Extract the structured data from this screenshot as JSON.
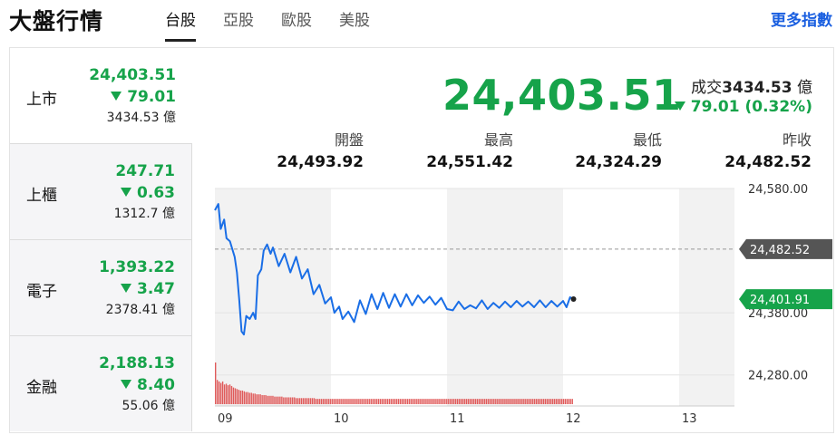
{
  "header": {
    "title": "大盤行情",
    "tabs": [
      {
        "label": "台股",
        "active": true
      },
      {
        "label": "亞股",
        "active": false
      },
      {
        "label": "歐股",
        "active": false
      },
      {
        "label": "美股",
        "active": false
      }
    ],
    "more_label": "更多指數"
  },
  "sidebar": {
    "items": [
      {
        "name": "上市",
        "price": "24,403.51",
        "change": "79.01",
        "volume": "3434.53 億",
        "direction": "down"
      },
      {
        "name": "上櫃",
        "price": "247.71",
        "change": "0.63",
        "volume": "1312.7 億",
        "direction": "down"
      },
      {
        "name": "電子",
        "price": "1,393.22",
        "change": "3.47",
        "volume": "2378.41 億",
        "direction": "down"
      },
      {
        "name": "金融",
        "price": "2,188.13",
        "change": "8.40",
        "volume": "55.06 億",
        "direction": "down"
      }
    ]
  },
  "main": {
    "price": "24,403.51",
    "volume_label": "成交",
    "volume_value": "3434.53",
    "volume_unit": "億",
    "change_text": "79.01 (0.32%)",
    "stats": [
      {
        "label": "開盤",
        "value": "24,493.92"
      },
      {
        "label": "最高",
        "value": "24,551.42"
      },
      {
        "label": "最低",
        "value": "24,324.29"
      },
      {
        "label": "昨收",
        "value": "24,482.52"
      }
    ]
  },
  "colors": {
    "down": "#16a34a",
    "line": "#1a6ee6",
    "volume": "#e05a5a",
    "link": "#1a5fe0",
    "shade": "#f2f2f2",
    "prev_close_badge": "#555555"
  },
  "chart_data": {
    "type": "line",
    "x_ticks": [
      "09",
      "10",
      "11",
      "12",
      "13"
    ],
    "y_ticks": [
      "24,580.00",
      "24,380.00",
      "24,280.00"
    ],
    "ylim": [
      24230,
      24580
    ],
    "prev_close": 24482.52,
    "prev_close_label": "24,482.52",
    "last_label": "24,401.91",
    "last_value": 24401.91,
    "shaded_hours": [
      [
        9,
        10
      ],
      [
        11,
        12
      ],
      [
        13,
        13.5
      ]
    ],
    "series": [
      {
        "values": [
          [
            9.0,
            24545
          ],
          [
            9.03,
            24555
          ],
          [
            9.05,
            24515
          ],
          [
            9.08,
            24530
          ],
          [
            9.1,
            24500
          ],
          [
            9.13,
            24495
          ],
          [
            9.17,
            24470
          ],
          [
            9.19,
            24445
          ],
          [
            9.21,
            24400
          ],
          [
            9.23,
            24350
          ],
          [
            9.25,
            24345
          ],
          [
            9.27,
            24375
          ],
          [
            9.3,
            24370
          ],
          [
            9.33,
            24380
          ],
          [
            9.35,
            24370
          ],
          [
            9.37,
            24440
          ],
          [
            9.4,
            24450
          ],
          [
            9.42,
            24480
          ],
          [
            9.45,
            24490
          ],
          [
            9.48,
            24475
          ],
          [
            9.5,
            24485
          ],
          [
            9.55,
            24455
          ],
          [
            9.6,
            24475
          ],
          [
            9.65,
            24445
          ],
          [
            9.7,
            24470
          ],
          [
            9.75,
            24435
          ],
          [
            9.8,
            24450
          ],
          [
            9.85,
            24410
          ],
          [
            9.9,
            24425
          ],
          [
            9.95,
            24395
          ],
          [
            10.0,
            24405
          ],
          [
            10.03,
            24380
          ],
          [
            10.07,
            24390
          ],
          [
            10.1,
            24370
          ],
          [
            10.15,
            24382
          ],
          [
            10.2,
            24365
          ],
          [
            10.25,
            24400
          ],
          [
            10.3,
            24378
          ],
          [
            10.35,
            24410
          ],
          [
            10.4,
            24386
          ],
          [
            10.45,
            24412
          ],
          [
            10.5,
            24388
          ],
          [
            10.55,
            24410
          ],
          [
            10.6,
            24390
          ],
          [
            10.65,
            24410
          ],
          [
            10.7,
            24392
          ],
          [
            10.75,
            24408
          ],
          [
            10.8,
            24396
          ],
          [
            10.85,
            24406
          ],
          [
            10.9,
            24393
          ],
          [
            10.95,
            24404
          ],
          [
            11.0,
            24386
          ],
          [
            11.05,
            24384
          ],
          [
            11.1,
            24398
          ],
          [
            11.15,
            24386
          ],
          [
            11.2,
            24392
          ],
          [
            11.25,
            24387
          ],
          [
            11.3,
            24400
          ],
          [
            11.35,
            24386
          ],
          [
            11.4,
            24396
          ],
          [
            11.45,
            24388
          ],
          [
            11.5,
            24398
          ],
          [
            11.55,
            24389
          ],
          [
            11.6,
            24399
          ],
          [
            11.65,
            24390
          ],
          [
            11.7,
            24398
          ],
          [
            11.75,
            24389
          ],
          [
            11.8,
            24400
          ],
          [
            11.85,
            24389
          ],
          [
            11.9,
            24399
          ],
          [
            11.95,
            24390
          ],
          [
            12.0,
            24399
          ],
          [
            12.03,
            24389
          ],
          [
            12.06,
            24405
          ],
          [
            12.09,
            24402
          ]
        ]
      }
    ],
    "volume": [
      0.55,
      0.32,
      0.3,
      0.28,
      0.3,
      0.26,
      0.27,
      0.25,
      0.26,
      0.24,
      0.22,
      0.21,
      0.2,
      0.19,
      0.18,
      0.18,
      0.17,
      0.16,
      0.16,
      0.15,
      0.15,
      0.14,
      0.14,
      0.13,
      0.13,
      0.13,
      0.12,
      0.12,
      0.12,
      0.11,
      0.11,
      0.11,
      0.11,
      0.1,
      0.1,
      0.1,
      0.1,
      0.1,
      0.09,
      0.09,
      0.09,
      0.09,
      0.09,
      0.09,
      0.09,
      0.08,
      0.08,
      0.08,
      0.08,
      0.08,
      0.08,
      0.08,
      0.08,
      0.08,
      0.08,
      0.08,
      0.07,
      0.07,
      0.07,
      0.07,
      0.07,
      0.07,
      0.07,
      0.07,
      0.07,
      0.07,
      0.07,
      0.07,
      0.07,
      0.07,
      0.07,
      0.07,
      0.07,
      0.07,
      0.07,
      0.07,
      0.07,
      0.07,
      0.07,
      0.07,
      0.07,
      0.07,
      0.07,
      0.07,
      0.07,
      0.07,
      0.07,
      0.07,
      0.07,
      0.07,
      0.07,
      0.07,
      0.07,
      0.07,
      0.07,
      0.07,
      0.07,
      0.07,
      0.07,
      0.07,
      0.07,
      0.07,
      0.07,
      0.07,
      0.07,
      0.07,
      0.07,
      0.07,
      0.07,
      0.07,
      0.07,
      0.07,
      0.07,
      0.07,
      0.07,
      0.07,
      0.07,
      0.07,
      0.07,
      0.07,
      0.07,
      0.07,
      0.07,
      0.07,
      0.07,
      0.07,
      0.07,
      0.07,
      0.07,
      0.07,
      0.07,
      0.07,
      0.07,
      0.07,
      0.07,
      0.07,
      0.07,
      0.07,
      0.07,
      0.07,
      0.07,
      0.07,
      0.07,
      0.07,
      0.07,
      0.07,
      0.07,
      0.07,
      0.07,
      0.07,
      0.07,
      0.07,
      0.07,
      0.07,
      0.07,
      0.07,
      0.07,
      0.07,
      0.07,
      0.07,
      0.07,
      0.07,
      0.07,
      0.07,
      0.07,
      0.07,
      0.07,
      0.07,
      0.07,
      0.07,
      0.07,
      0.07,
      0.07,
      0.07,
      0.07,
      0.07,
      0.07,
      0.07,
      0.07,
      0.07,
      0.07,
      0.07,
      0.07,
      0.07,
      0.07,
      0.07,
      0.07,
      0.07,
      0.07,
      0.07,
      0.07,
      0.07,
      0.07,
      0.07,
      0.07,
      0.07,
      0.07,
      0.07,
      0.07,
      0.07
    ]
  }
}
